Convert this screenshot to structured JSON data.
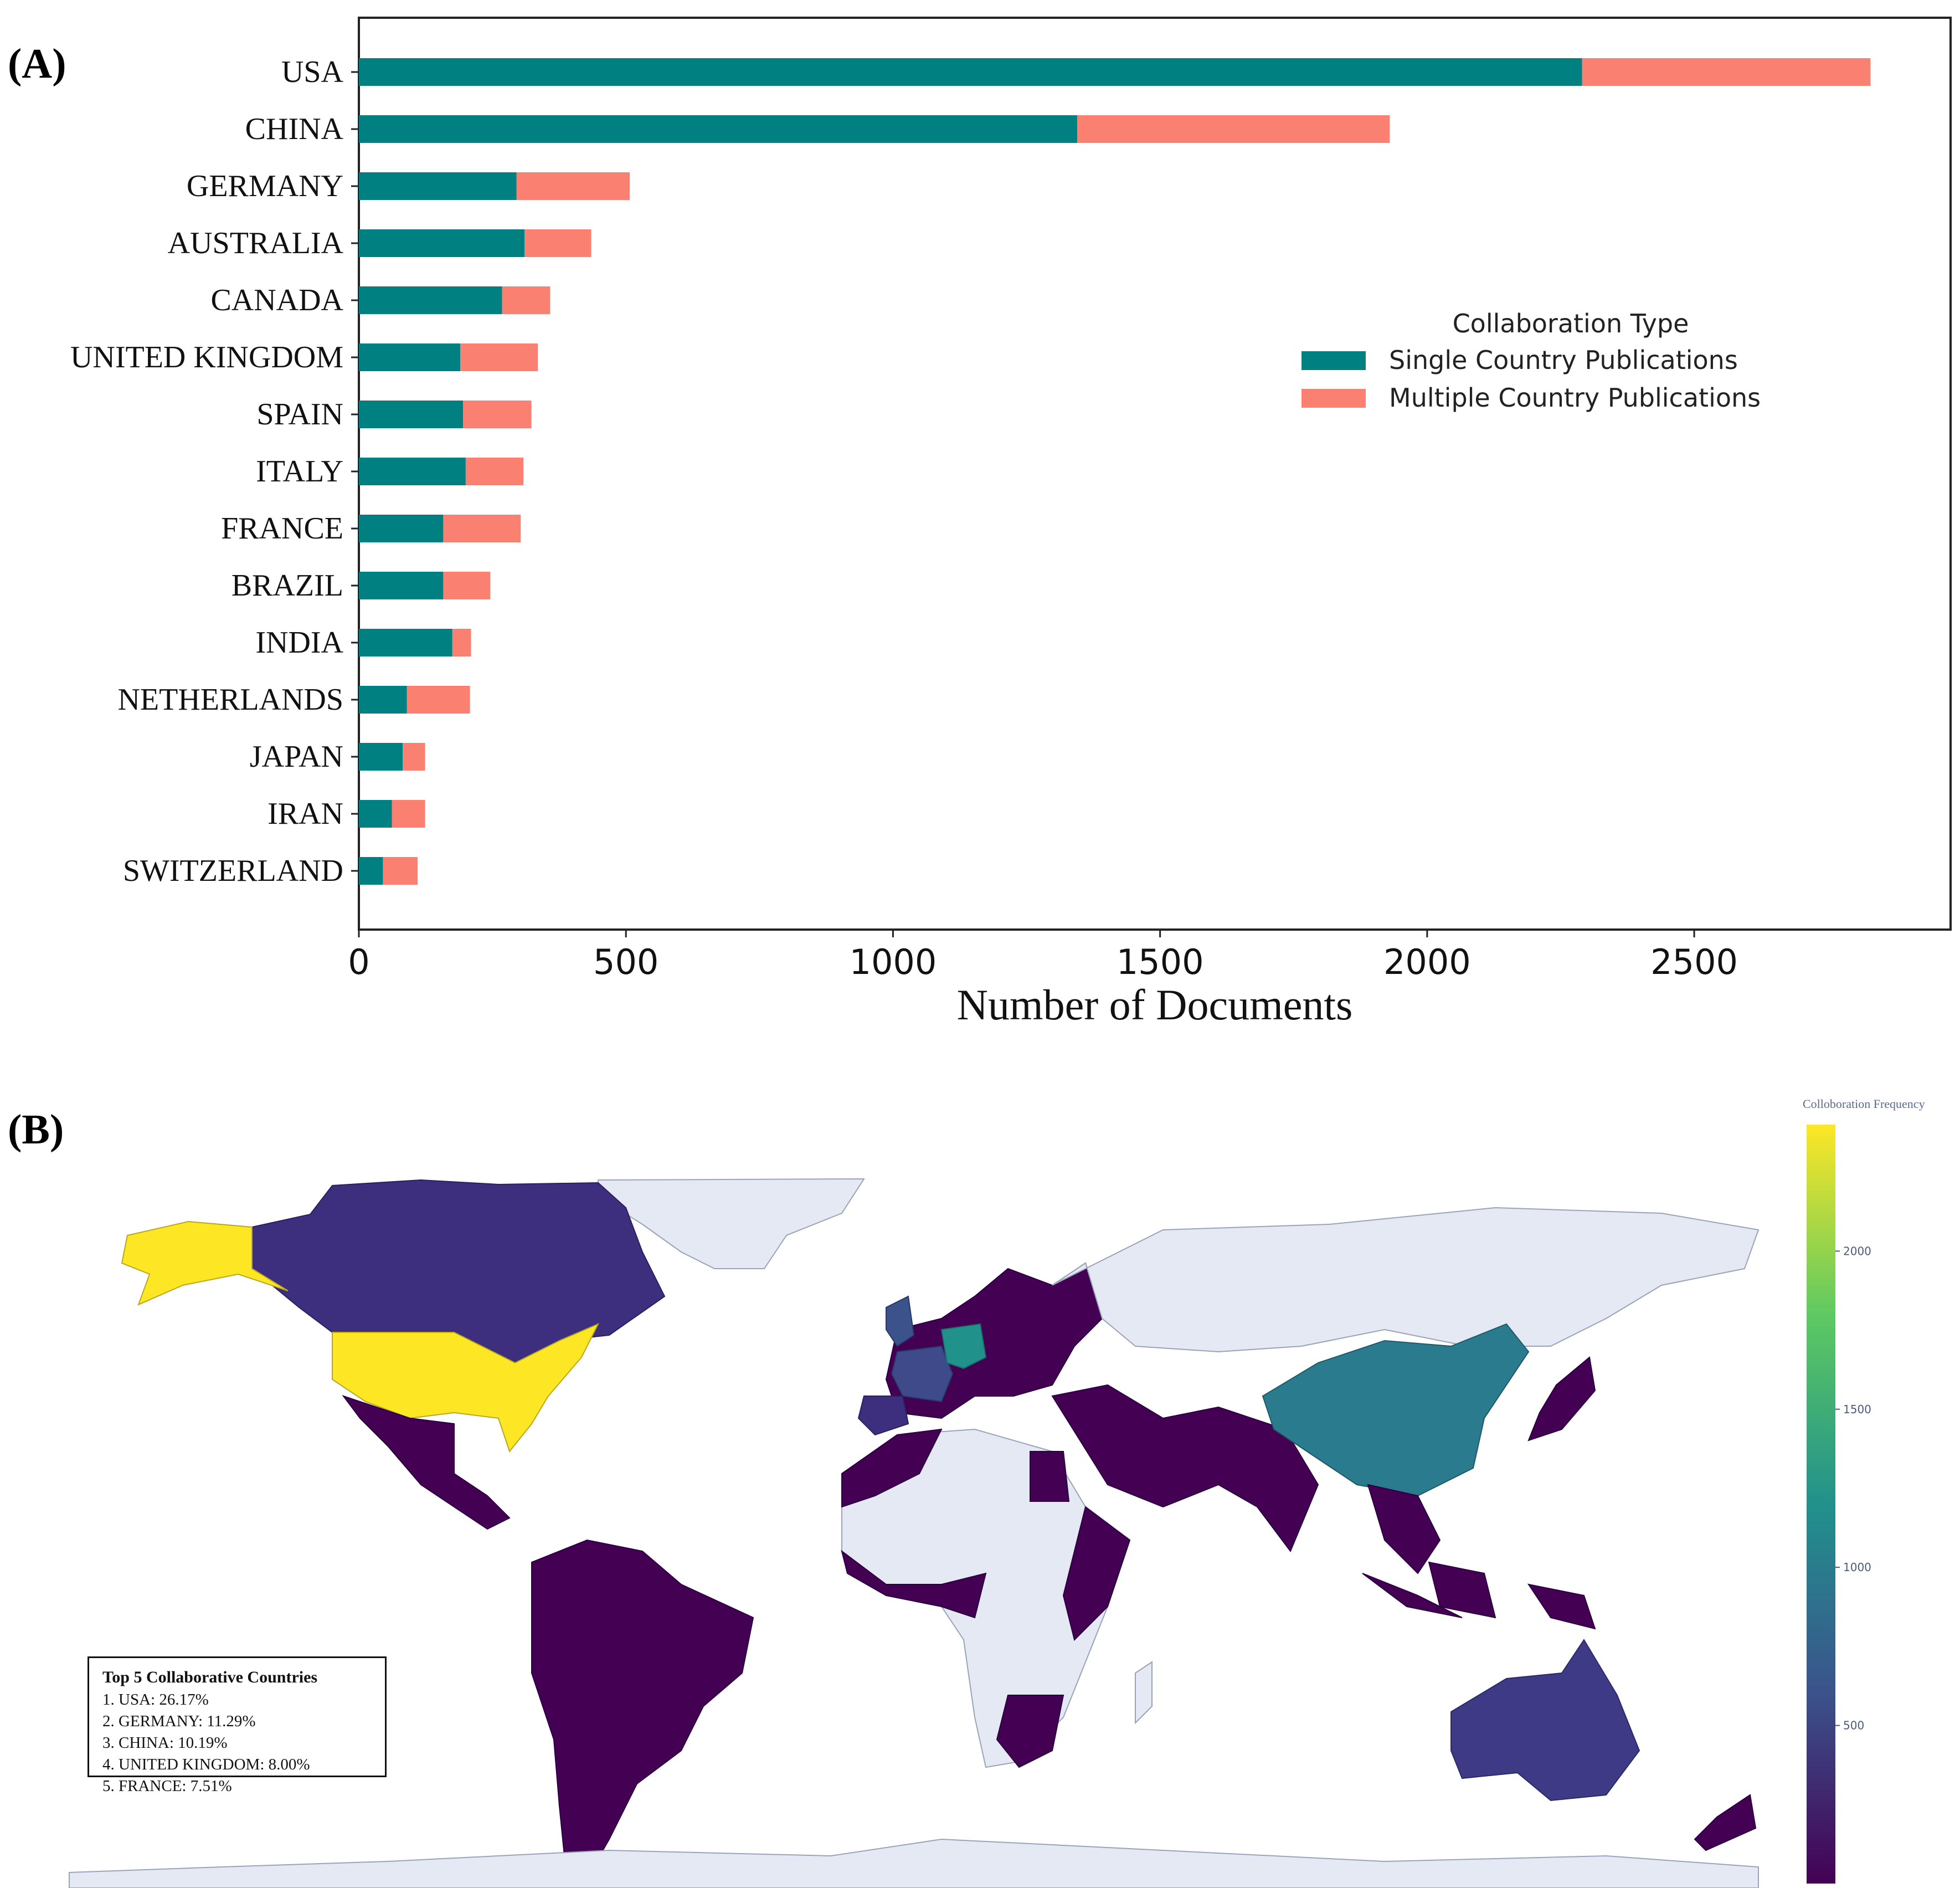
{
  "panels": {
    "a_label": "(A)",
    "b_label": "(B)"
  },
  "chart_data": [
    {
      "type": "bar",
      "orientation": "horizontal",
      "stacked": true,
      "categories": [
        "USA",
        "CHINA",
        "GERMANY",
        "AUSTRALIA",
        "CANADA",
        "UNITED KINGDOM",
        "SPAIN",
        "ITALY",
        "FRANCE",
        "BRAZIL",
        "INDIA",
        "NETHERLANDS",
        "JAPAN",
        "IRAN",
        "SWITZERLAND"
      ],
      "series": [
        {
          "name": "Single Country Publications",
          "color": "#008080",
          "values": [
            2290,
            1345,
            295,
            310,
            268,
            190,
            195,
            200,
            158,
            158,
            175,
            90,
            82,
            62,
            45
          ]
        },
        {
          "name": "Multiple Country Publications",
          "color": "#FA8072",
          "values": [
            540,
            585,
            212,
            125,
            90,
            145,
            128,
            108,
            145,
            88,
            35,
            118,
            42,
            62,
            65
          ]
        }
      ],
      "title": "",
      "xlabel": "Number of Documents",
      "ylabel": "",
      "xlim": [
        0,
        2980
      ],
      "xticks": [
        0,
        500,
        1000,
        1500,
        2000,
        2500
      ],
      "legend": {
        "title": "Collaboration Type",
        "position": "center-right"
      }
    },
    {
      "type": "choropleth",
      "title": "",
      "colorbar": {
        "title": "Colloboration Frequency",
        "ticks": [
          500,
          1000,
          1500,
          2000
        ],
        "range": [
          0,
          2400
        ]
      },
      "values": {
        "USA": 2400,
        "CHINA": 1100,
        "GERMANY": 1250,
        "UNITED KINGDOM": 700,
        "FRANCE": 650,
        "AUSTRALIA": 420,
        "CANADA": 300,
        "SPAIN": 350
      },
      "top5": {
        "title": "Top 5 Collaborative Countries",
        "items": [
          "1. USA: 26.17%",
          "2. GERMANY: 11.29%",
          "3. CHINA: 10.19%",
          "4. UNITED KINGDOM: 8.00%",
          "5. FRANCE: 7.51%"
        ]
      }
    }
  ]
}
